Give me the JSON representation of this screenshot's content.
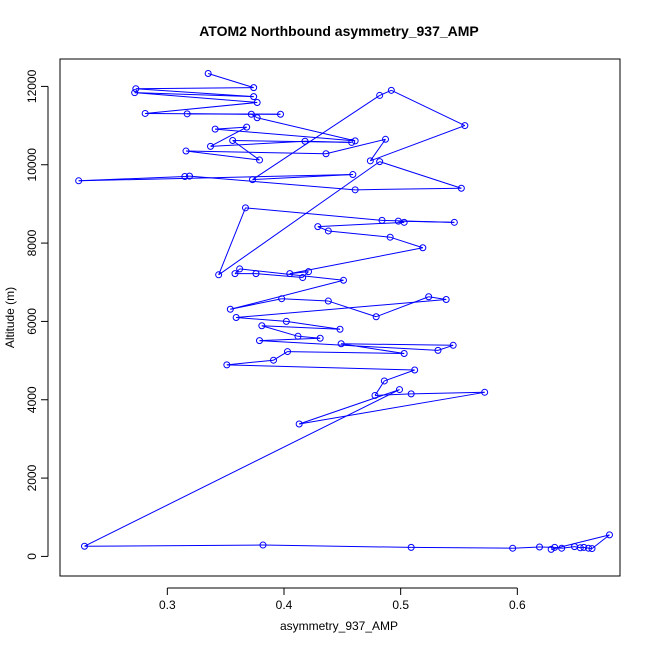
{
  "chart_data": {
    "type": "line",
    "title": "ATOM2 Northbound asymmetry_937_AMP",
    "xlabel": "asymmetry_937_AMP",
    "ylabel": "Altitude (m)",
    "xlim": [
      0.208,
      0.688
    ],
    "ylim": [
      -500,
      12700
    ],
    "xticks": [
      0.3,
      0.4,
      0.5,
      0.6
    ],
    "xtick_labels": [
      "0.3",
      "0.4",
      "0.5",
      "0.6"
    ],
    "yticks": [
      0,
      2000,
      4000,
      6000,
      8000,
      10000,
      12000
    ],
    "ytick_labels": [
      "0",
      "2000",
      "4000",
      "6000",
      "8000",
      "10000",
      "12000"
    ],
    "grid": false,
    "color": "#0000ff",
    "series": [
      {
        "points": [
          [
            0.335,
            12330
          ],
          [
            0.374,
            11970
          ],
          [
            0.273,
            11940
          ],
          [
            0.374,
            11740
          ],
          [
            0.272,
            11840
          ],
          [
            0.377,
            11590
          ],
          [
            0.281,
            11310
          ],
          [
            0.397,
            11290
          ],
          [
            0.317,
            11300
          ],
          [
            0.372,
            11290
          ],
          [
            0.377,
            11200
          ],
          [
            0.461,
            10610
          ],
          [
            0.341,
            10910
          ],
          [
            0.368,
            10960
          ],
          [
            0.337,
            10470
          ],
          [
            0.418,
            10600
          ],
          [
            0.458,
            10570
          ],
          [
            0.356,
            10620
          ],
          [
            0.379,
            10120
          ],
          [
            0.316,
            10350
          ],
          [
            0.436,
            10280
          ],
          [
            0.487,
            10650
          ],
          [
            0.474,
            10100
          ],
          [
            0.555,
            11000
          ],
          [
            0.492,
            11900
          ],
          [
            0.482,
            11770
          ],
          [
            0.373,
            9620
          ],
          [
            0.459,
            9750
          ],
          [
            0.224,
            9590
          ],
          [
            0.315,
            9700
          ],
          [
            0.319,
            9710
          ],
          [
            0.461,
            9360
          ],
          [
            0.552,
            9400
          ],
          [
            0.482,
            10080
          ],
          [
            0.344,
            7190
          ],
          [
            0.367,
            8900
          ],
          [
            0.484,
            8580
          ],
          [
            0.546,
            8530
          ],
          [
            0.498,
            8560
          ],
          [
            0.503,
            8530
          ],
          [
            0.429,
            8420
          ],
          [
            0.438,
            8310
          ],
          [
            0.491,
            8150
          ],
          [
            0.519,
            7880
          ],
          [
            0.405,
            7220
          ],
          [
            0.421,
            7270
          ],
          [
            0.416,
            7120
          ],
          [
            0.376,
            7220
          ],
          [
            0.358,
            7220
          ],
          [
            0.362,
            7340
          ],
          [
            0.451,
            7050
          ],
          [
            0.354,
            6310
          ],
          [
            0.398,
            6580
          ],
          [
            0.438,
            6520
          ],
          [
            0.479,
            6120
          ],
          [
            0.524,
            6630
          ],
          [
            0.539,
            6560
          ],
          [
            0.359,
            6100
          ],
          [
            0.402,
            6000
          ],
          [
            0.448,
            5800
          ],
          [
            0.381,
            5890
          ],
          [
            0.412,
            5620
          ],
          [
            0.431,
            5570
          ],
          [
            0.379,
            5510
          ],
          [
            0.532,
            5260
          ],
          [
            0.545,
            5390
          ],
          [
            0.449,
            5430
          ],
          [
            0.503,
            5180
          ],
          [
            0.403,
            5230
          ],
          [
            0.391,
            5010
          ],
          [
            0.351,
            4890
          ],
          [
            0.512,
            4760
          ],
          [
            0.486,
            4480
          ],
          [
            0.478,
            4110
          ],
          [
            0.509,
            4150
          ],
          [
            0.572,
            4190
          ],
          [
            0.413,
            3380
          ],
          [
            0.499,
            4260
          ],
          [
            0.229,
            260
          ],
          [
            0.382,
            290
          ],
          [
            0.509,
            230
          ],
          [
            0.596,
            210
          ],
          [
            0.619,
            240
          ],
          [
            0.632,
            230
          ],
          [
            0.638,
            210
          ],
          [
            0.649,
            250
          ],
          [
            0.654,
            220
          ],
          [
            0.657,
            230
          ],
          [
            0.661,
            210
          ],
          [
            0.664,
            200
          ],
          [
            0.679,
            550
          ],
          [
            0.629,
            180
          ]
        ]
      }
    ]
  }
}
